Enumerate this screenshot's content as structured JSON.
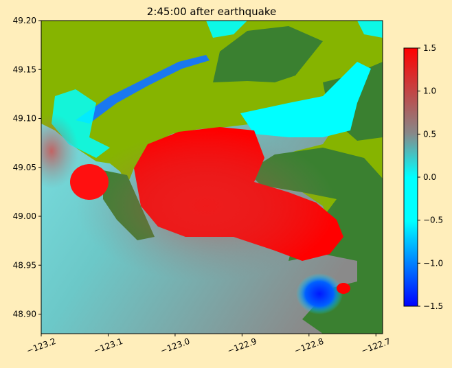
{
  "chart_data": {
    "type": "heatmap",
    "title": "2:45:00 after earthquake",
    "xlabel": "",
    "ylabel": "",
    "xlim": [
      -123.2,
      -122.69
    ],
    "ylim": [
      48.88,
      49.2
    ],
    "xticks": [
      -123.2,
      -123.1,
      -123.0,
      -122.9,
      -122.8,
      -122.7
    ],
    "xtick_labels": [
      "−123.2",
      "−123.1",
      "−123.0",
      "−122.9",
      "−122.8",
      "−122.7"
    ],
    "yticks": [
      48.9,
      48.95,
      49.0,
      49.05,
      49.1,
      49.15,
      49.2
    ],
    "ytick_labels": [
      "48.90",
      "48.95",
      "49.00",
      "49.05",
      "49.10",
      "49.15",
      "49.20"
    ],
    "colorbar": {
      "range": [
        -1.5,
        1.5
      ],
      "ticks": [
        1.5,
        1.0,
        0.5,
        0.0,
        -0.5,
        -1.0,
        -1.5
      ],
      "tick_labels": [
        "1.5",
        "1.0",
        "0.5",
        "0.0",
        "−0.5",
        "−1.0",
        "−1.5"
      ],
      "colors": [
        "#0000ff",
        "#00ffff",
        "#888888",
        "#ff0000"
      ]
    },
    "land_colors": [
      "#86b400",
      "#3a8030"
    ],
    "grid": false
  }
}
